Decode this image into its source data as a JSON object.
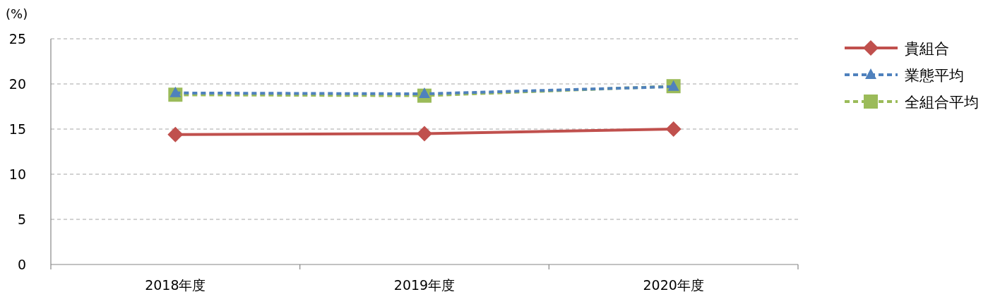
{
  "chart_data": {
    "type": "line",
    "ylabel": "(%)",
    "categories": [
      "2018年度",
      "2019年度",
      "2020年度"
    ],
    "ylim": [
      0,
      25
    ],
    "yticks": [
      0,
      5,
      10,
      15,
      20,
      25
    ],
    "grid": "y",
    "legend": "right",
    "series": [
      {
        "name": "貴組合",
        "color": "#c0504d",
        "values": [
          14.4,
          14.5,
          15.0
        ],
        "marker": "diamond",
        "line_style": "solid"
      },
      {
        "name": "業態平均",
        "color": "#4f81bd",
        "values": [
          19.0,
          18.9,
          19.7
        ],
        "marker": "triangle",
        "line_style": "dashed"
      },
      {
        "name": "全組合平均",
        "color": "#9bbb59",
        "values": [
          18.8,
          18.7,
          19.75
        ],
        "marker": "square",
        "line_style": "dashed"
      }
    ]
  }
}
